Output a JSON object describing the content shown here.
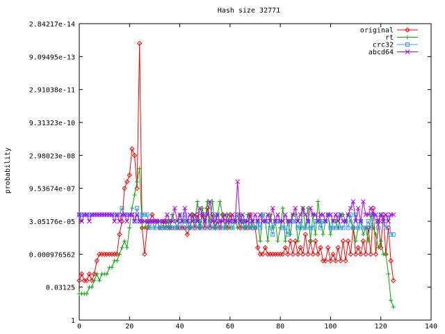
{
  "chart_data": {
    "type": "line",
    "title": "Hash size 32771",
    "xlabel": "",
    "ylabel": "probability",
    "xlim": [
      0,
      140
    ],
    "x_ticks": [
      0,
      20,
      40,
      60,
      80,
      100,
      120,
      140
    ],
    "y_scale": "log2",
    "ylim_log2": [
      -45,
      0
    ],
    "y_ticks": [
      {
        "label": "1",
        "log2": 0
      },
      {
        "label": "0.03125",
        "log2": -5
      },
      {
        "label": "0.000976562",
        "log2": -10
      },
      {
        "label": "3.05176e-05",
        "log2": -15
      },
      {
        "label": "9.53674e-07",
        "log2": -20
      },
      {
        "label": "2.98023e-08",
        "log2": -25
      },
      {
        "label": "9.31323e-10",
        "log2": -30
      },
      {
        "label": "2.91038e-11",
        "log2": -35
      },
      {
        "label": "9.09495e-13",
        "log2": -40
      },
      {
        "label": "2.84217e-14",
        "log2": -45
      }
    ],
    "legend_position": "top-right",
    "series": [
      {
        "name": "original",
        "color": "#ff0000",
        "marker": "diamond",
        "x": [
          0,
          1,
          2,
          3,
          4,
          5,
          6,
          7,
          8,
          9,
          10,
          11,
          12,
          13,
          14,
          15,
          16,
          17,
          18,
          19,
          20,
          21,
          22,
          23,
          24,
          25,
          26,
          27,
          28,
          29,
          30,
          31,
          32,
          33,
          34,
          35,
          36,
          37,
          38,
          39,
          40,
          41,
          42,
          43,
          44,
          45,
          46,
          47,
          48,
          49,
          50,
          51,
          52,
          53,
          54,
          55,
          56,
          57,
          58,
          59,
          60,
          61,
          62,
          63,
          64,
          65,
          66,
          67,
          68,
          69,
          70,
          71,
          72,
          73,
          74,
          75,
          76,
          77,
          78,
          79,
          80,
          81,
          82,
          83,
          84,
          85,
          86,
          87,
          88,
          89,
          90,
          91,
          92,
          93,
          94,
          95,
          96,
          97,
          98,
          99,
          100,
          101,
          102,
          103,
          104,
          105,
          106,
          107,
          108,
          109,
          110,
          111,
          112,
          113,
          114,
          115,
          116,
          117,
          118,
          119,
          120,
          121,
          122,
          123,
          124,
          125
        ],
        "log2_y": [
          -6,
          -7,
          -6,
          -6,
          -7,
          -6,
          -7,
          -9,
          -10,
          -10,
          -10,
          -10,
          -10,
          -10,
          -10,
          -10,
          -13,
          -15,
          -20,
          -21,
          -22,
          -26,
          -25,
          -20,
          -42,
          -14,
          -10,
          -14,
          -15,
          -16,
          -15,
          -15,
          -14,
          -14,
          -15,
          -14,
          -14,
          -14,
          -14,
          -14,
          -14,
          -14,
          -14,
          -13,
          -14,
          -16,
          -14,
          -16,
          -14,
          -16,
          -14,
          -17,
          -14,
          -16,
          -14,
          -15,
          -14,
          -16,
          -15,
          -14,
          -16,
          -15,
          -15,
          -16,
          -14,
          -15,
          -14,
          -14,
          -16,
          -14,
          -14,
          -11,
          -10,
          -10,
          -11,
          -10,
          -10,
          -10,
          -10,
          -10,
          -10,
          -10,
          -11,
          -10,
          -12,
          -10,
          -12,
          -10,
          -11,
          -10,
          -13,
          -10,
          -12,
          -10,
          -12,
          -10,
          -11,
          -9,
          -9,
          -11,
          -9,
          -10,
          -9,
          -11,
          -9,
          -12,
          -9,
          -12,
          -10,
          -14,
          -10,
          -11,
          -10,
          -12,
          -10,
          -14,
          -10,
          -17,
          -10,
          -15,
          -11,
          -16,
          -10,
          -14,
          -9,
          -6
        ],
        "note": "values read approximately from the plot"
      },
      {
        "name": "rt",
        "color": "#00aa00",
        "marker": "plus",
        "x": [
          0,
          1,
          2,
          3,
          4,
          5,
          6,
          7,
          8,
          9,
          10,
          11,
          12,
          13,
          14,
          15,
          16,
          17,
          18,
          19,
          20,
          21,
          22,
          23,
          24,
          25,
          26,
          27,
          28,
          29,
          30,
          31,
          32,
          33,
          34,
          35,
          36,
          37,
          38,
          39,
          40,
          41,
          42,
          43,
          44,
          45,
          46,
          47,
          48,
          49,
          50,
          51,
          52,
          53,
          54,
          55,
          56,
          57,
          58,
          59,
          60,
          61,
          62,
          63,
          64,
          65,
          66,
          67,
          68,
          69,
          70,
          71,
          72,
          73,
          74,
          75,
          76,
          77,
          78,
          79,
          80,
          81,
          82,
          83,
          84,
          85,
          86,
          87,
          88,
          89,
          90,
          91,
          92,
          93,
          94,
          95,
          96,
          97,
          98,
          99,
          100,
          101,
          102,
          103,
          104,
          105,
          106,
          107,
          108,
          109,
          110,
          111,
          112,
          113,
          114,
          115,
          116,
          117,
          118,
          119,
          120,
          121,
          122,
          123,
          124,
          125
        ],
        "log2_y": [
          -4,
          -4,
          -4,
          -4,
          -5,
          -5,
          -6,
          -7,
          -6,
          -7,
          -7,
          -7,
          -8,
          -8,
          -9,
          -9,
          -10,
          -11,
          -12,
          -11,
          -14,
          -17,
          -19,
          -21,
          -23,
          -14,
          -14,
          -15,
          -14,
          -15,
          -14,
          -15,
          -14,
          -15,
          -14,
          -15,
          -14,
          -16,
          -15,
          -14,
          -16,
          -15,
          -15,
          -15,
          -14,
          -16,
          -15,
          -18,
          -14,
          -17,
          -15,
          -18,
          -15,
          -18,
          -14,
          -16,
          -18,
          -16,
          -14,
          -16,
          -14,
          -14,
          -15,
          -14,
          -16,
          -15,
          -14,
          -16,
          -14,
          -15,
          -14,
          -15,
          -12,
          -16,
          -15,
          -12,
          -16,
          -14,
          -15,
          -12,
          -14,
          -17,
          -12,
          -15,
          -13,
          -16,
          -16,
          -12,
          -14,
          -17,
          -14,
          -17,
          -12,
          -16,
          -13,
          -18,
          -15,
          -13,
          -15,
          -16,
          -13,
          -15,
          -15,
          -14,
          -16,
          -16,
          -15,
          -16,
          -15,
          -14,
          -12,
          -14,
          -15,
          -13,
          -14,
          -12,
          -16,
          -14,
          -13,
          -11,
          -12,
          -10,
          -10,
          -7,
          -3,
          -2
        ]
      },
      {
        "name": "crc32",
        "color": "#3399ff",
        "marker": "square",
        "x": [
          0,
          1,
          2,
          3,
          4,
          5,
          6,
          7,
          8,
          9,
          10,
          11,
          12,
          13,
          14,
          15,
          16,
          17,
          18,
          19,
          20,
          21,
          22,
          23,
          24,
          25,
          26,
          27,
          28,
          29,
          30,
          31,
          32,
          33,
          34,
          35,
          36,
          37,
          38,
          39,
          40,
          41,
          42,
          43,
          44,
          45,
          46,
          47,
          48,
          49,
          50,
          51,
          52,
          53,
          54,
          55,
          56,
          57,
          58,
          59,
          60,
          61,
          62,
          63,
          64,
          65,
          66,
          67,
          68,
          69,
          70,
          71,
          72,
          73,
          74,
          75,
          76,
          77,
          78,
          79,
          80,
          81,
          82,
          83,
          84,
          85,
          86,
          87,
          88,
          89,
          90,
          91,
          92,
          93,
          94,
          95,
          96,
          97,
          98,
          99,
          100,
          101,
          102,
          103,
          104,
          105,
          106,
          107,
          108,
          109,
          110,
          111,
          112,
          113,
          114,
          115,
          116,
          117,
          118,
          119,
          120,
          121,
          122,
          123,
          124,
          125
        ],
        "log2_y": [
          -16,
          -16,
          -16,
          -16,
          -16,
          -16,
          -16,
          -16,
          -16,
          -16,
          -16,
          -16,
          -16,
          -16,
          -16,
          -16,
          -16,
          -17,
          -16,
          -16,
          -16,
          -16,
          -15,
          -17,
          -15,
          -16,
          -16,
          -16,
          -14,
          -15,
          -14,
          -15,
          -14,
          -14,
          -14,
          -14,
          -15,
          -14,
          -14,
          -14,
          -15,
          -14,
          -16,
          -14,
          -15,
          -14,
          -15,
          -14,
          -15,
          -14,
          -16,
          -14,
          -15,
          -14,
          -16,
          -14,
          -15,
          -14,
          -14,
          -15,
          -15,
          -14,
          -15,
          -16,
          -15,
          -14,
          -15,
          -14,
          -15,
          -14,
          -14,
          -15,
          -14,
          -16,
          -15,
          -15,
          -14,
          -13,
          -15,
          -15,
          -15,
          -14,
          -14,
          -13,
          -15,
          -15,
          -15,
          -14,
          -15,
          -14,
          -14,
          -15,
          -14,
          -14,
          -15,
          -15,
          -14,
          -15,
          -15,
          -16,
          -14,
          -14,
          -14,
          -16,
          -14,
          -14,
          -15,
          -14,
          -16,
          -14,
          -16,
          -14,
          -15,
          -14,
          -14,
          -15,
          -14,
          -16,
          -15,
          -14,
          -16,
          -15,
          -14,
          -16,
          -13,
          -13
        ]
      },
      {
        "name": "abcd64",
        "color": "#aa00ff",
        "marker": "cross",
        "x": [
          0,
          1,
          2,
          3,
          4,
          5,
          6,
          7,
          8,
          9,
          10,
          11,
          12,
          13,
          14,
          15,
          16,
          17,
          18,
          19,
          20,
          21,
          22,
          23,
          24,
          25,
          26,
          27,
          28,
          29,
          30,
          31,
          32,
          33,
          34,
          35,
          36,
          37,
          38,
          39,
          40,
          41,
          42,
          43,
          44,
          45,
          46,
          47,
          48,
          49,
          50,
          51,
          52,
          53,
          54,
          55,
          56,
          57,
          58,
          59,
          60,
          61,
          62,
          63,
          64,
          65,
          66,
          67,
          68,
          69,
          70,
          71,
          72,
          73,
          74,
          75,
          76,
          77,
          78,
          79,
          80,
          81,
          82,
          83,
          84,
          85,
          86,
          87,
          88,
          89,
          90,
          91,
          92,
          93,
          94,
          95,
          96,
          97,
          98,
          99,
          100,
          101,
          102,
          103,
          104,
          105,
          106,
          107,
          108,
          109,
          110,
          111,
          112,
          113,
          114,
          115,
          116,
          117,
          118,
          119,
          120,
          121,
          122,
          123,
          124,
          125
        ],
        "log2_y": [
          -16,
          -15,
          -16,
          -16,
          -15,
          -16,
          -16,
          -16,
          -16,
          -16,
          -16,
          -16,
          -16,
          -16,
          -15,
          -16,
          -15,
          -16,
          -16,
          -15,
          -16,
          -16,
          -15,
          -16,
          -15,
          -15,
          -15,
          -15,
          -15,
          -15,
          -15,
          -15,
          -15,
          -15,
          -15,
          -16,
          -15,
          -15,
          -17,
          -15,
          -16,
          -15,
          -17,
          -15,
          -16,
          -15,
          -16,
          -15,
          -17,
          -16,
          -15,
          -16,
          -18,
          -15,
          -15,
          -16,
          -15,
          -15,
          -16,
          -15,
          -15,
          -16,
          -15,
          -21,
          -15,
          -16,
          -15,
          -15,
          -16,
          -15,
          -16,
          -15,
          -16,
          -15,
          -15,
          -16,
          -15,
          -17,
          -15,
          -16,
          -15,
          -15,
          -16,
          -15,
          -15,
          -16,
          -17,
          -15,
          -16,
          -17,
          -16,
          -15,
          -17,
          -16,
          -16,
          -15,
          -16,
          -16,
          -15,
          -16,
          -16,
          -15,
          -16,
          -15,
          -16,
          -15,
          -15,
          -16,
          -17,
          -18,
          -15,
          -17,
          -15,
          -18,
          -16,
          -16,
          -17,
          -16,
          -16,
          -15,
          -16,
          -15,
          -16,
          -15,
          -16,
          -16
        ]
      }
    ]
  }
}
